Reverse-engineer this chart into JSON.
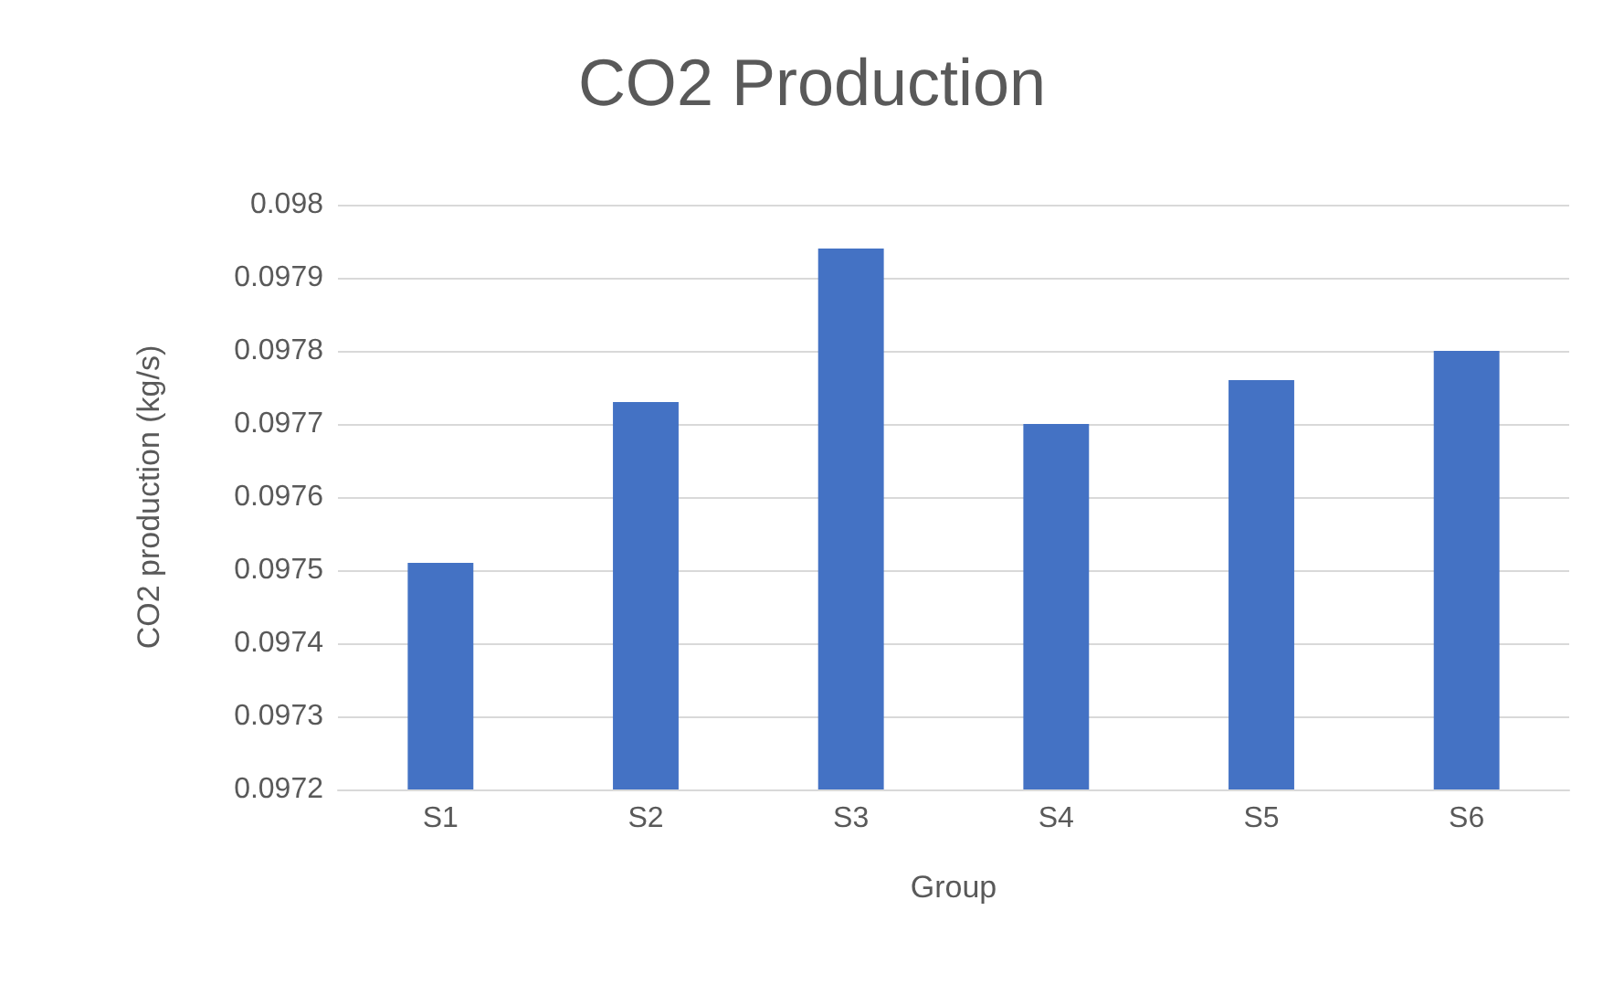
{
  "chart_data": {
    "type": "bar",
    "title": "CO2 Production",
    "xlabel": "Group",
    "ylabel": "CO2 production (kg/s)",
    "categories": [
      "S1",
      "S2",
      "S3",
      "S4",
      "S5",
      "S6"
    ],
    "values": [
      0.09751,
      0.09773,
      0.09794,
      0.0977,
      0.09776,
      0.0978
    ],
    "color": "#4472c4",
    "ylim": [
      0.0972,
      0.098
    ],
    "yticks": [
      0.0972,
      0.0973,
      0.0974,
      0.0975,
      0.0976,
      0.0977,
      0.0978,
      0.0979,
      0.098
    ],
    "grid": "y"
  }
}
